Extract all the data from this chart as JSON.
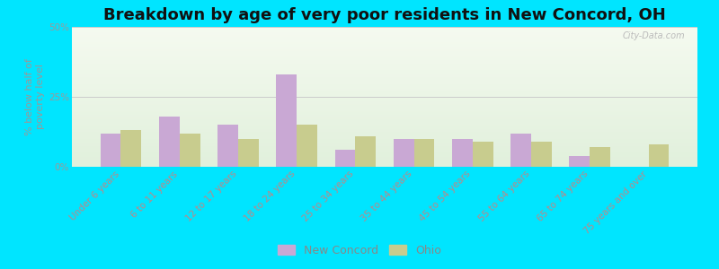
{
  "title": "Breakdown by age of very poor residents in New Concord, OH",
  "ylabel": "% below half of\npoverty level",
  "categories": [
    "Under 6 years",
    "6 to 11 years",
    "12 to 17 years",
    "18 to 24 years",
    "25 to 34 years",
    "35 to 44 years",
    "45 to 54 years",
    "55 to 64 years",
    "65 to 74 years",
    "75 years and over"
  ],
  "new_concord": [
    12,
    18,
    15,
    33,
    6,
    10,
    10,
    12,
    4,
    0
  ],
  "ohio": [
    13,
    12,
    10,
    15,
    11,
    10,
    9,
    9,
    7,
    8
  ],
  "ylim": [
    0,
    50
  ],
  "yticks": [
    0,
    25,
    50
  ],
  "ytick_labels": [
    "0%",
    "25%",
    "50%"
  ],
  "bar_width": 0.35,
  "new_concord_color": "#c9a8d4",
  "ohio_color": "#c8cc8e",
  "background_outer": "#00e5ff",
  "grid_color": "#cccccc",
  "title_fontsize": 13,
  "axis_label_fontsize": 8,
  "tick_fontsize": 7.5,
  "legend_labels": [
    "New Concord",
    "Ohio"
  ],
  "watermark": "City-Data.com"
}
